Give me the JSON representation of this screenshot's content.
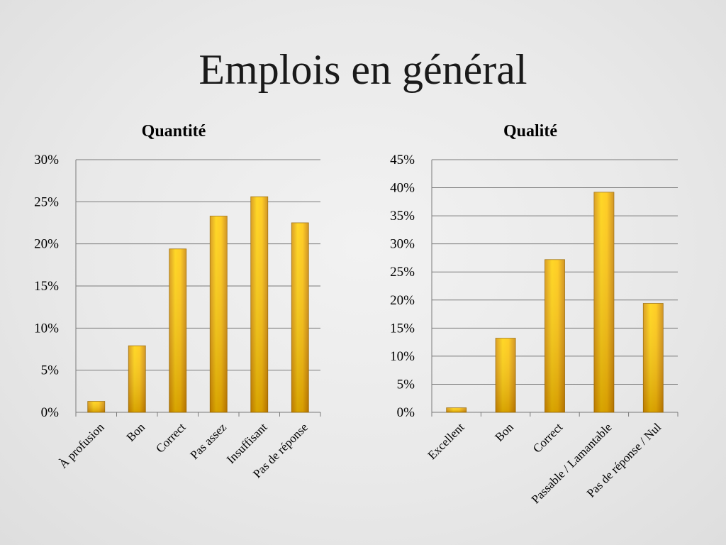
{
  "slide": {
    "title": "Emplois en général"
  },
  "chart_data": [
    {
      "type": "bar",
      "title": "Quantité",
      "categories": [
        "À profusion",
        "Bon",
        "Correct",
        "Pas assez",
        "Insuffisant",
        "Pas de réponse"
      ],
      "values": [
        1.3,
        7.9,
        19.4,
        23.3,
        25.6,
        22.5
      ],
      "yticks": [
        "0%",
        "5%",
        "10%",
        "15%",
        "20%",
        "25%",
        "30%"
      ],
      "ylim": [
        0,
        30
      ],
      "ystep": 5,
      "grid": true,
      "bar_color": "#f0b400"
    },
    {
      "type": "bar",
      "title": "Qualité",
      "categories": [
        "Excellent",
        "Bon",
        "Correct",
        "Passable / Lamantable",
        "Pas de réponse / Nul"
      ],
      "values": [
        0.8,
        13.2,
        27.2,
        39.2,
        19.4
      ],
      "yticks": [
        "0%",
        "5%",
        "10%",
        "15%",
        "20%",
        "25%",
        "30%",
        "35%",
        "40%",
        "45%"
      ],
      "ylim": [
        0,
        45
      ],
      "ystep": 5,
      "grid": true,
      "bar_color": "#f0b400"
    }
  ]
}
